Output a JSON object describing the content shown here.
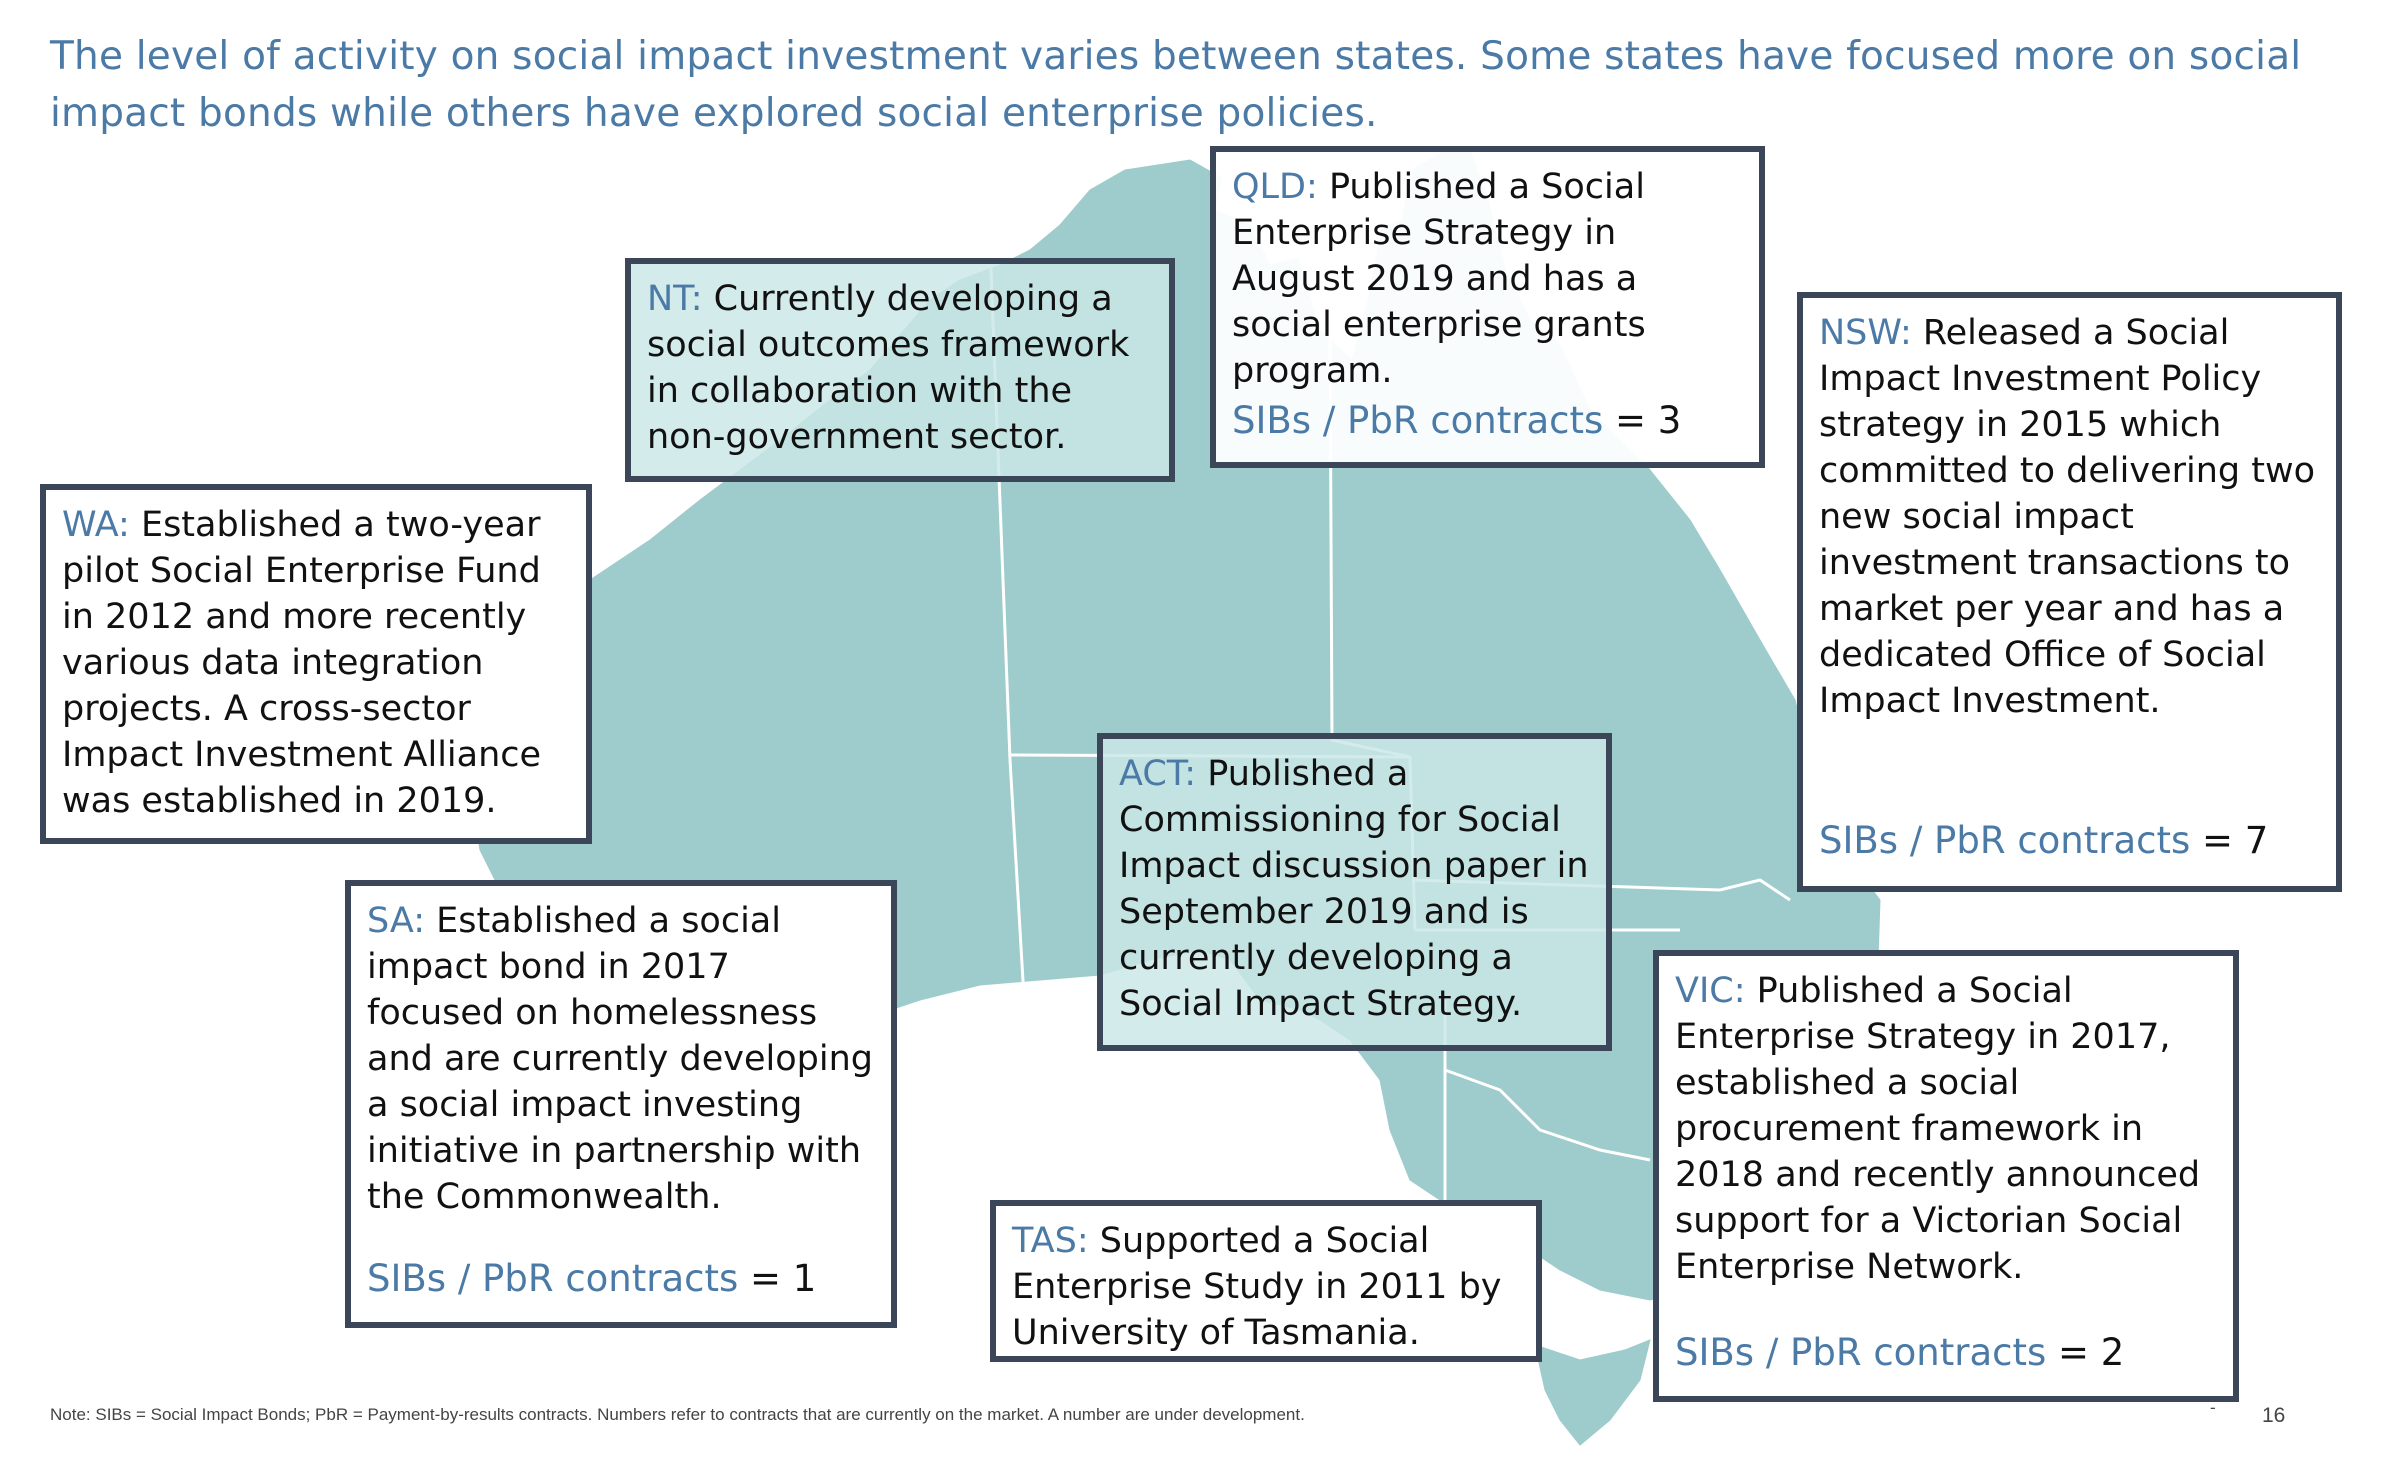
{
  "headline": "The level of activity on social impact investment varies between states. Some states have focused more on social impact bonds while others have explored social enterprise policies.",
  "boxes": {
    "nt": {
      "state": "NT:",
      "text": "Currently developing a social outcomes framework in collaboration with the non-government sector."
    },
    "qld": {
      "state": "QLD:",
      "text": "Published a Social Enterprise Strategy in August 2019 and has a social enterprise grants program.",
      "count_label": "SIBs / PbR contracts",
      "count_value": "= 3"
    },
    "nsw": {
      "state": "NSW:",
      "text": "Released a Social Impact Investment Policy strategy in 2015 which committed to delivering two new social impact investment transactions to market per year and has a dedicated Office of Social Impact Investment.",
      "count_label": "SIBs / PbR contracts",
      "count_value": "= 7"
    },
    "wa": {
      "state": "WA:",
      "text": "Established a two-year pilot Social Enterprise Fund in 2012 and more recently various data integration projects. A cross-sector Impact Investment Alliance was established in 2019."
    },
    "act": {
      "state": "ACT:",
      "text": "Published a Commissioning for Social Impact discussion paper in September 2019 and is currently developing a Social Impact Strategy."
    },
    "sa": {
      "state": "SA:",
      "text": "Established a social impact bond in 2017 focused on homelessness and are currently developing a social impact investing initiative in partnership with the Commonwealth.",
      "count_label": "SIBs / PbR contracts",
      "count_value": "= 1"
    },
    "vic": {
      "state": "VIC:",
      "text": "Published a Social Enterprise Strategy in 2017, established a social procurement framework in 2018 and recently announced support for a Victorian Social Enterprise Network.",
      "count_label": "SIBs / PbR contracts",
      "count_value": "= 2"
    },
    "tas": {
      "state": "TAS:",
      "text": "Supported a Social Enterprise Study in 2011 by University of Tasmania."
    }
  },
  "footer": {
    "note": "Note: SIBs = Social Impact Bonds; PbR = Payment-by-results contracts. Numbers refer to contracts that are currently on the market. A number are under development.",
    "dash": "-",
    "page_number": "16"
  },
  "colors": {
    "map_fill": "#9ecbcb",
    "accent": "#4b7aa6",
    "box_border": "#3b4659"
  },
  "icons": [
    "australia-map"
  ]
}
